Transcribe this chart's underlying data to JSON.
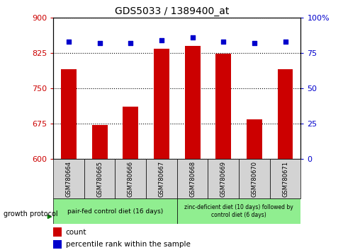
{
  "title": "GDS5033 / 1389400_at",
  "samples": [
    "GSM780664",
    "GSM780665",
    "GSM780666",
    "GSM780667",
    "GSM780668",
    "GSM780669",
    "GSM780670",
    "GSM780671"
  ],
  "counts": [
    790,
    672,
    710,
    833,
    840,
    823,
    683,
    790
  ],
  "percentiles": [
    83,
    82,
    82,
    84,
    86,
    83,
    82,
    83
  ],
  "ylim_left": [
    600,
    900
  ],
  "ylim_right": [
    0,
    100
  ],
  "yticks_left": [
    600,
    675,
    750,
    825,
    900
  ],
  "yticks_right": [
    0,
    25,
    50,
    75,
    100
  ],
  "ytick_labels_left": [
    "600",
    "675",
    "750",
    "825",
    "900"
  ],
  "ytick_labels_right": [
    "0",
    "25",
    "50",
    "75",
    "100%"
  ],
  "bar_color": "#cc0000",
  "dot_color": "#0000cc",
  "group1_label": "pair-fed control diet (16 days)",
  "group2_label": "zinc-deficient diet (10 days) followed by\ncontrol diet (6 days)",
  "group1_color": "#90ee90",
  "group2_color": "#90ee90",
  "sample_bg_color": "#d3d3d3",
  "legend_count_color": "#cc0000",
  "legend_pct_color": "#0000cc",
  "title_fontsize": 10,
  "axis_label_color_left": "#cc0000",
  "axis_label_color_right": "#0000cc",
  "growth_protocol_text": "growth protocol",
  "arrow_color": "#008000"
}
